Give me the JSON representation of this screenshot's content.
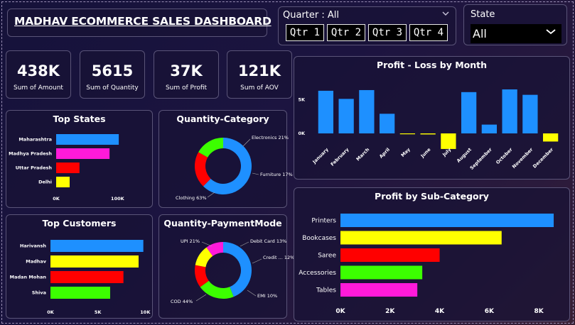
{
  "dashboard": {
    "title": "MADHAV ECOMMERCE SALES DASHBOARD"
  },
  "filters": {
    "quarter_label": "Quarter : All",
    "quarters": [
      "Qtr 1",
      "Qtr 2",
      "Qtr 3",
      "Qtr 4"
    ],
    "state_label": "State",
    "state_value": "All"
  },
  "kpis": [
    {
      "value": "438K",
      "caption": "Sum of Amount"
    },
    {
      "value": "5615",
      "caption": "Sum of Quantity"
    },
    {
      "value": "37K",
      "caption": "Sum of Profit"
    },
    {
      "value": "121K",
      "caption": "Sum of AOV"
    }
  ],
  "icons": {
    "dropdown": "chevron-down-icon"
  },
  "chart_data": [
    {
      "id": "top_states",
      "type": "bar",
      "orientation": "horizontal",
      "title": "Top States",
      "categories": [
        "Maharashtra",
        "Madhya Pradesh",
        "Uttar Pradesh",
        "Delhi"
      ],
      "values": [
        102000,
        87000,
        38000,
        22000
      ],
      "colors": [
        "#1e90ff",
        "#ff1ad9",
        "#ff0000",
        "#ffff00"
      ],
      "xlim": [
        0,
        110000
      ],
      "xticks": [
        "0K",
        "100K"
      ]
    },
    {
      "id": "quantity_category",
      "type": "pie",
      "donut": true,
      "title": "Quantity-Category",
      "labels": [
        "Clothing",
        "Electronics",
        "Furniture"
      ],
      "values": [
        63,
        21,
        17
      ],
      "colors": [
        "#1e90ff",
        "#ff0000",
        "#3cff00"
      ],
      "data_labels": [
        "Clothing 63%",
        "Electronics 21%",
        "Furniture 17%"
      ]
    },
    {
      "id": "profit_by_month",
      "type": "bar",
      "title": "Profit - Loss by Month",
      "categories": [
        "January",
        "February",
        "March",
        "April",
        "May",
        "June",
        "July",
        "August",
        "September",
        "October",
        "November",
        "December"
      ],
      "values": [
        6300,
        5100,
        6400,
        2900,
        -100,
        -150,
        -2300,
        6100,
        1300,
        6500,
        5700,
        -1200
      ],
      "positive_color": "#1e90ff",
      "negative_color": "#ffff00",
      "ylim": [
        -3000,
        8000
      ],
      "yticks": [
        "5K",
        "0K"
      ]
    },
    {
      "id": "top_customers",
      "type": "bar",
      "orientation": "horizontal",
      "title": "Top Customers",
      "categories": [
        "Harivansh",
        "Madhav",
        "Madan Mohan",
        "Shiva"
      ],
      "values": [
        9800,
        9300,
        7700,
        6300
      ],
      "colors": [
        "#1e90ff",
        "#ffff00",
        "#ff0000",
        "#3cff00"
      ],
      "xlim": [
        0,
        10200
      ],
      "xticks": [
        "0K",
        "5K",
        "10K"
      ]
    },
    {
      "id": "quantity_payment_mode",
      "type": "pie",
      "donut": true,
      "title": "Quantity-PaymentMode",
      "labels": [
        "COD",
        "UPI",
        "Debit Card",
        "Credit ...",
        "EMI"
      ],
      "values": [
        44,
        21,
        13,
        12,
        10
      ],
      "colors": [
        "#1e90ff",
        "#3cff00",
        "#ff0000",
        "#ffff00",
        "#ff1ad9"
      ],
      "data_labels": [
        "COD 44%",
        "UPI 21%",
        "Debit Card 13%",
        "Credit ... 12%",
        "EMI 10%"
      ]
    },
    {
      "id": "profit_by_subcategory",
      "type": "bar",
      "orientation": "horizontal",
      "title": "Profit by Sub-Category",
      "categories": [
        "Printers",
        "Bookcases",
        "Saree",
        "Accessories",
        "Tables"
      ],
      "values": [
        8600,
        6500,
        4000,
        3300,
        3100
      ],
      "colors": [
        "#1e90ff",
        "#ffff00",
        "#ff0000",
        "#3cff00",
        "#ff1ad9"
      ],
      "xlim": [
        0,
        8800
      ],
      "xticks": [
        "0K",
        "2K",
        "4K",
        "6K",
        "8K"
      ]
    }
  ]
}
